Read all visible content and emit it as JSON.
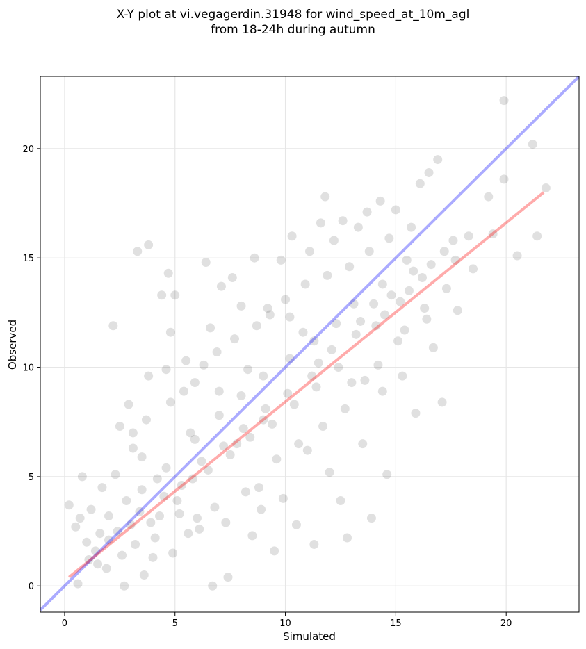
{
  "chart_data": {
    "type": "scatter",
    "title_line1": "X-Y plot at vi.vegagerdin.31948 for wind_speed_at_10m_agl",
    "title_line2": "from 18-24h during autumn",
    "xlabel": "Simulated",
    "ylabel": "Observed",
    "xlim": [
      -1.1,
      23.3
    ],
    "ylim": [
      -1.2,
      23.3
    ],
    "xticks": [
      0,
      5,
      10,
      15,
      20
    ],
    "yticks": [
      0,
      5,
      10,
      15,
      20
    ],
    "grid": true,
    "series": [
      {
        "role": "observations",
        "color": "#000000",
        "points": [
          [
            0.2,
            3.7
          ],
          [
            0.5,
            2.7
          ],
          [
            0.7,
            3.1
          ],
          [
            0.8,
            5.0
          ],
          [
            1.0,
            2.0
          ],
          [
            1.2,
            3.5
          ],
          [
            1.5,
            1.0
          ],
          [
            1.7,
            4.5
          ],
          [
            2.0,
            2.1
          ],
          [
            2.2,
            11.9
          ],
          [
            2.5,
            7.3
          ],
          [
            2.7,
            0.0
          ],
          [
            2.9,
            8.3
          ],
          [
            3.1,
            7.0
          ],
          [
            3.3,
            15.3
          ],
          [
            3.5,
            5.9
          ],
          [
            3.8,
            15.6
          ],
          [
            3.8,
            9.6
          ],
          [
            4.0,
            1.3
          ],
          [
            4.2,
            4.9
          ],
          [
            4.4,
            13.3
          ],
          [
            4.6,
            9.9
          ],
          [
            4.7,
            14.3
          ],
          [
            4.8,
            11.6
          ],
          [
            5.0,
            13.3
          ],
          [
            5.2,
            3.3
          ],
          [
            5.5,
            10.3
          ],
          [
            5.7,
            7.0
          ],
          [
            5.9,
            9.3
          ],
          [
            6.1,
            2.6
          ],
          [
            6.4,
            14.8
          ],
          [
            6.6,
            11.8
          ],
          [
            6.7,
            0.0
          ],
          [
            7.0,
            8.9
          ],
          [
            7.1,
            13.7
          ],
          [
            7.4,
            0.4
          ],
          [
            7.6,
            14.1
          ],
          [
            7.8,
            6.5
          ],
          [
            8.0,
            12.8
          ],
          [
            8.3,
            9.9
          ],
          [
            8.5,
            2.3
          ],
          [
            8.6,
            15.0
          ],
          [
            8.8,
            4.5
          ],
          [
            9.0,
            7.6
          ],
          [
            9.2,
            12.7
          ],
          [
            9.5,
            1.6
          ],
          [
            9.8,
            14.9
          ],
          [
            9.9,
            4.0
          ],
          [
            10.2,
            12.3
          ],
          [
            10.3,
            16.0
          ],
          [
            10.5,
            2.8
          ],
          [
            10.8,
            11.6
          ],
          [
            11.0,
            6.2
          ],
          [
            11.1,
            15.3
          ],
          [
            11.3,
            1.9
          ],
          [
            11.5,
            10.2
          ],
          [
            11.6,
            16.6
          ],
          [
            11.8,
            17.8
          ],
          [
            12.0,
            5.2
          ],
          [
            12.2,
            15.8
          ],
          [
            12.5,
            3.9
          ],
          [
            12.6,
            16.7
          ],
          [
            12.8,
            2.2
          ],
          [
            13.0,
            9.3
          ],
          [
            13.3,
            16.4
          ],
          [
            13.5,
            6.5
          ],
          [
            13.7,
            17.1
          ],
          [
            13.9,
            3.1
          ],
          [
            14.0,
            12.9
          ],
          [
            14.3,
            17.6
          ],
          [
            14.4,
            8.9
          ],
          [
            14.6,
            5.1
          ],
          [
            14.8,
            13.3
          ],
          [
            15.0,
            17.2
          ],
          [
            15.1,
            11.2
          ],
          [
            15.3,
            9.6
          ],
          [
            15.5,
            14.9
          ],
          [
            15.7,
            16.4
          ],
          [
            15.9,
            7.9
          ],
          [
            16.1,
            18.4
          ],
          [
            16.3,
            12.7
          ],
          [
            16.5,
            18.9
          ],
          [
            16.7,
            10.9
          ],
          [
            16.9,
            19.5
          ],
          [
            17.1,
            8.4
          ],
          [
            17.3,
            13.6
          ],
          [
            17.6,
            15.8
          ],
          [
            17.8,
            12.6
          ],
          [
            18.3,
            16.0
          ],
          [
            18.5,
            14.5
          ],
          [
            19.2,
            17.8
          ],
          [
            19.4,
            16.1
          ],
          [
            19.9,
            22.2
          ],
          [
            19.9,
            18.6
          ],
          [
            20.5,
            15.1
          ],
          [
            21.2,
            20.2
          ],
          [
            21.4,
            16.0
          ],
          [
            21.8,
            18.2
          ],
          [
            0.6,
            0.1
          ],
          [
            1.4,
            1.6
          ],
          [
            2.0,
            3.2
          ],
          [
            2.4,
            2.5
          ],
          [
            3.0,
            2.8
          ],
          [
            3.4,
            3.4
          ],
          [
            3.9,
            2.9
          ],
          [
            4.3,
            3.2
          ],
          [
            4.5,
            4.1
          ],
          [
            5.1,
            3.9
          ],
          [
            5.3,
            4.6
          ],
          [
            5.8,
            4.9
          ],
          [
            6.2,
            5.7
          ],
          [
            6.5,
            5.3
          ],
          [
            7.2,
            6.4
          ],
          [
            7.5,
            6.0
          ],
          [
            8.1,
            7.2
          ],
          [
            8.4,
            6.8
          ],
          [
            9.1,
            8.1
          ],
          [
            9.4,
            7.4
          ],
          [
            10.1,
            8.8
          ],
          [
            10.4,
            8.3
          ],
          [
            11.2,
            9.6
          ],
          [
            11.4,
            9.1
          ],
          [
            12.1,
            10.8
          ],
          [
            12.4,
            10.0
          ],
          [
            13.2,
            11.5
          ],
          [
            13.4,
            12.1
          ],
          [
            14.1,
            11.9
          ],
          [
            14.5,
            12.4
          ],
          [
            15.2,
            13.0
          ],
          [
            15.6,
            13.5
          ],
          [
            16.2,
            14.1
          ],
          [
            16.6,
            14.7
          ],
          [
            17.2,
            15.3
          ],
          [
            17.7,
            14.9
          ],
          [
            1.9,
            0.8
          ],
          [
            2.6,
            1.4
          ],
          [
            3.2,
            1.9
          ],
          [
            3.6,
            0.5
          ],
          [
            4.1,
            2.2
          ],
          [
            4.9,
            1.5
          ],
          [
            5.6,
            2.4
          ],
          [
            6.0,
            3.1
          ],
          [
            6.8,
            3.6
          ],
          [
            7.3,
            2.9
          ],
          [
            8.2,
            4.3
          ],
          [
            8.9,
            3.5
          ],
          [
            9.6,
            5.8
          ],
          [
            10.6,
            6.5
          ],
          [
            11.7,
            7.3
          ],
          [
            12.7,
            8.1
          ],
          [
            13.6,
            9.4
          ],
          [
            14.2,
            10.1
          ],
          [
            15.4,
            11.7
          ],
          [
            16.4,
            12.2
          ],
          [
            2.3,
            5.1
          ],
          [
            3.1,
            6.3
          ],
          [
            3.7,
            7.6
          ],
          [
            4.8,
            8.4
          ],
          [
            5.4,
            8.9
          ],
          [
            6.3,
            10.1
          ],
          [
            6.9,
            10.7
          ],
          [
            7.7,
            11.3
          ],
          [
            8.7,
            11.9
          ],
          [
            9.3,
            12.4
          ],
          [
            10.0,
            13.1
          ],
          [
            10.9,
            13.8
          ],
          [
            11.9,
            14.2
          ],
          [
            12.9,
            14.6
          ],
          [
            13.8,
            15.3
          ],
          [
            14.7,
            15.9
          ],
          [
            1.1,
            1.2
          ],
          [
            1.6,
            2.4
          ],
          [
            2.8,
            3.9
          ],
          [
            3.5,
            4.4
          ],
          [
            4.6,
            5.4
          ],
          [
            5.9,
            6.7
          ],
          [
            7.0,
            7.8
          ],
          [
            8.0,
            8.7
          ],
          [
            9.0,
            9.6
          ],
          [
            10.2,
            10.4
          ],
          [
            11.3,
            11.2
          ],
          [
            12.3,
            12.0
          ],
          [
            13.1,
            12.9
          ],
          [
            14.4,
            13.8
          ],
          [
            15.8,
            14.4
          ]
        ]
      }
    ],
    "lines": [
      {
        "name": "1:1 line",
        "color": "#0000ff",
        "x": [
          -1.1,
          23.3
        ],
        "y": [
          -1.1,
          23.3
        ]
      },
      {
        "name": "regression",
        "color": "#ff0000",
        "x": [
          0.2,
          21.7
        ],
        "y": [
          0.4,
          18.0
        ]
      }
    ]
  }
}
